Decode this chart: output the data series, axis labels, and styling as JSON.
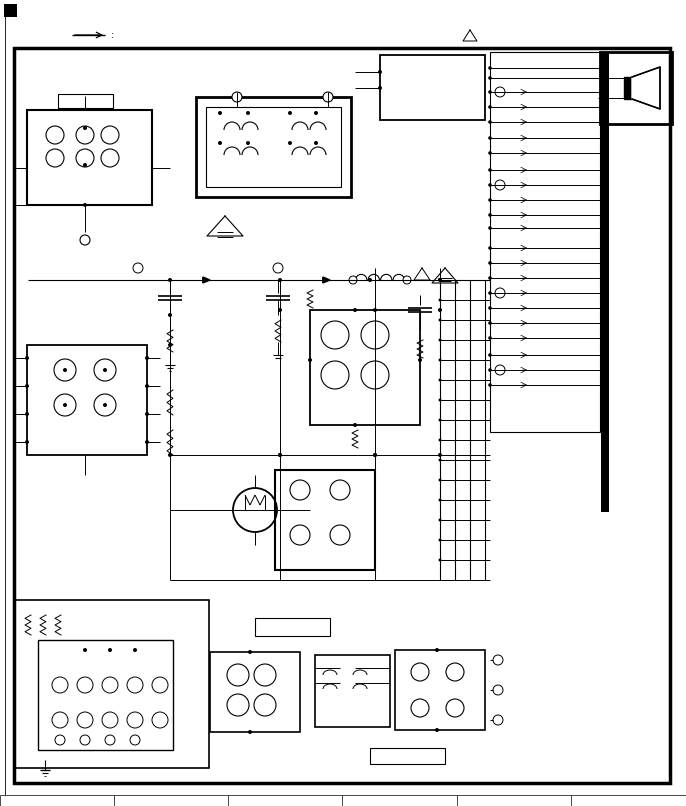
{
  "bg_color": "#ffffff",
  "line_color": "#000000",
  "fig_width": 6.86,
  "fig_height": 8.06,
  "dpi": 100
}
